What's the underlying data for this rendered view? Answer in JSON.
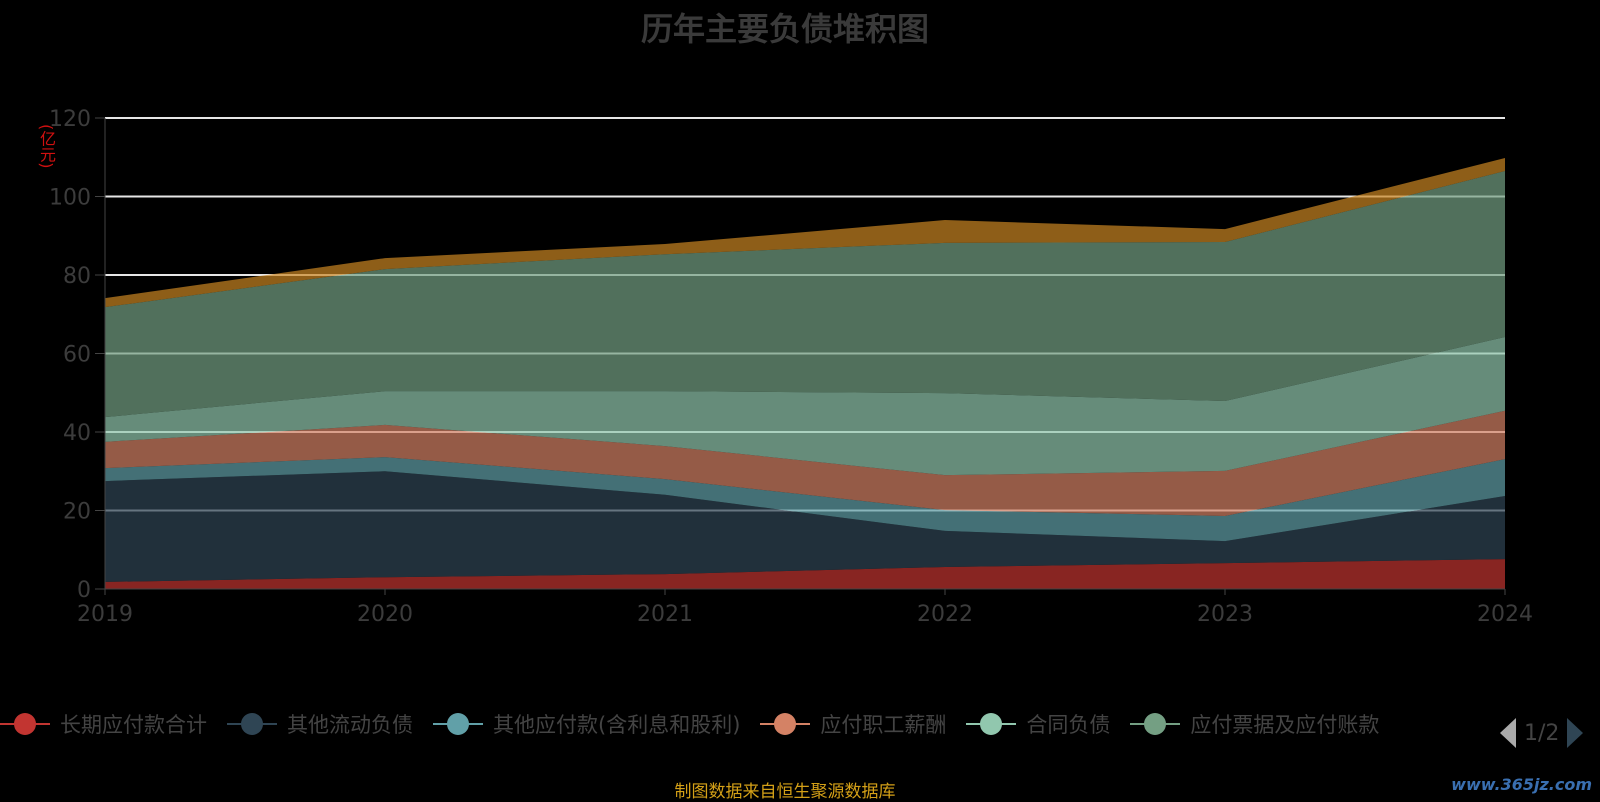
{
  "chart_data": {
    "type": "area",
    "stacked": true,
    "title": "历年主要负债堆积图",
    "ylabel": "(亿元)",
    "xlabel": "",
    "ylim": [
      0,
      120
    ],
    "yticks": [
      "0",
      "20",
      "40",
      "60",
      "80",
      "100",
      "120"
    ],
    "categories": [
      "2019",
      "2020",
      "2021",
      "2022",
      "2023",
      "2024"
    ],
    "grid": true,
    "legend_position": "bottom",
    "series": [
      {
        "name": "长期应付款合计",
        "color": "#c23531",
        "values": [
          1.8,
          3.0,
          3.8,
          5.6,
          6.6,
          7.6
        ]
      },
      {
        "name": "其他流动负债",
        "color": "#2f4554",
        "values": [
          25.7,
          27.0,
          20.2,
          9.2,
          5.6,
          16.1
        ]
      },
      {
        "name": "其他应付款(含利息和股利)",
        "color": "#61a0a8",
        "values": [
          3.3,
          3.6,
          4.0,
          5.3,
          6.4,
          9.4
        ]
      },
      {
        "name": "应付职工薪酬",
        "color": "#d48265",
        "values": [
          6.7,
          8.2,
          8.4,
          8.9,
          11.5,
          12.3
        ]
      },
      {
        "name": "合同负债",
        "color": "#91c7ae",
        "values": [
          6.3,
          8.6,
          14.0,
          20.9,
          17.8,
          18.8
        ]
      },
      {
        "name": "应付票据及应付账款",
        "color": "#749f83",
        "values": [
          28.0,
          31.1,
          34.9,
          38.3,
          40.5,
          42.3
        ]
      },
      {
        "name": "",
        "color": "#ca8622",
        "values": [
          2.3,
          2.8,
          2.6,
          5.8,
          3.3,
          3.3
        ]
      }
    ]
  },
  "legend": {
    "page": "1/2"
  },
  "source": "制图数据来自恒生聚源数据库",
  "watermark": "www.365jz.com"
}
